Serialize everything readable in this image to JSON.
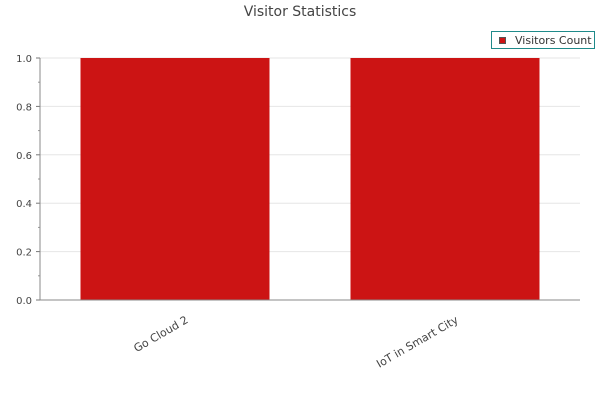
{
  "chart_data": {
    "type": "bar",
    "title": "Visitor Statistics",
    "categories": [
      "Go Cloud 2",
      "IoT in Smart City"
    ],
    "series": [
      {
        "name": "Visitors Count",
        "values": [
          1,
          1
        ],
        "color": "#cc1414"
      }
    ],
    "ylim": [
      0,
      1
    ],
    "yticks": [
      "0.0",
      "0.2",
      "0.4",
      "0.6",
      "0.8",
      "1.0"
    ],
    "xlabel": "",
    "ylabel": "",
    "grid": true,
    "legend_position": "top-right"
  }
}
